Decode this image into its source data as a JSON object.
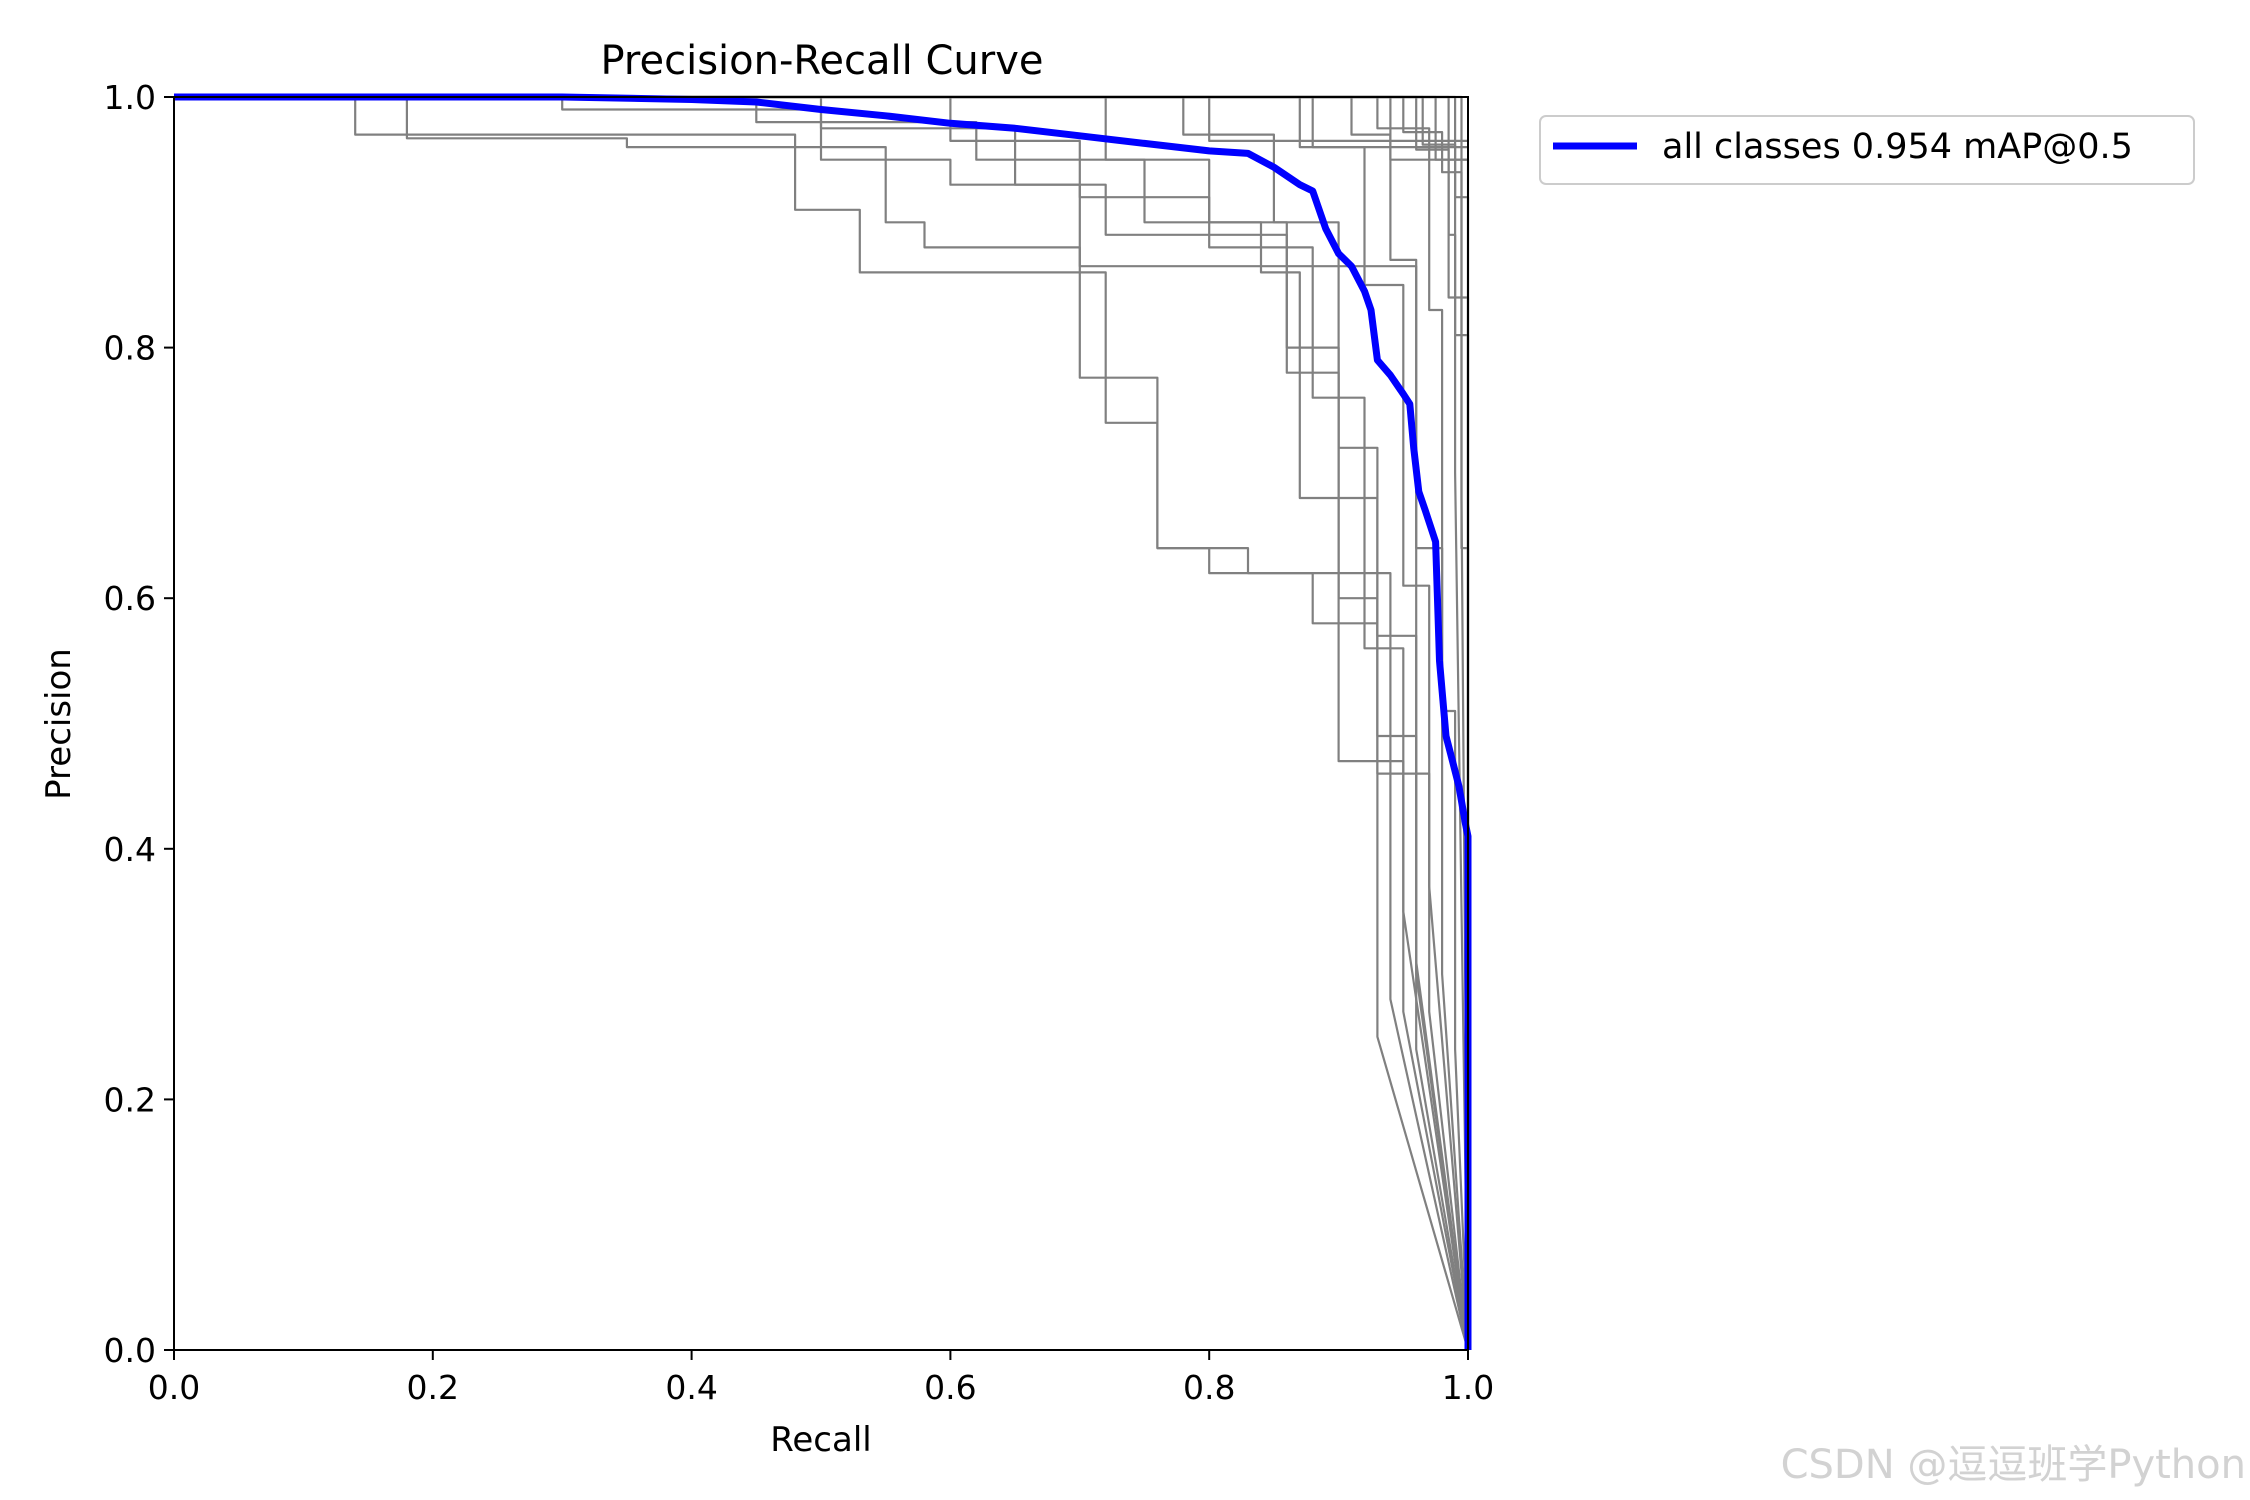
{
  "chart_data": {
    "type": "line",
    "title": "Precision-Recall Curve",
    "xlabel": "Recall",
    "ylabel": "Precision",
    "xlim": [
      0,
      1
    ],
    "ylim": [
      0,
      1
    ],
    "xticks": [
      "0.0",
      "0.2",
      "0.4",
      "0.6",
      "0.8",
      "1.0"
    ],
    "yticks": [
      "0.0",
      "0.2",
      "0.4",
      "0.6",
      "0.8",
      "1.0"
    ],
    "grid": false,
    "legend_position": "outside-top-right",
    "colors": {
      "summary": "#0000ff",
      "per_class": "#808080"
    },
    "legend": [
      "all classes 0.954 mAP@0.5"
    ],
    "series": [
      {
        "name": "all classes 0.954 mAP@0.5",
        "color": "#0000ff",
        "points": [
          [
            0,
            1.0
          ],
          [
            0.3,
            1.0
          ],
          [
            0.4,
            0.998
          ],
          [
            0.45,
            0.996
          ],
          [
            0.5,
            0.99
          ],
          [
            0.55,
            0.985
          ],
          [
            0.6,
            0.979
          ],
          [
            0.65,
            0.975
          ],
          [
            0.7,
            0.969
          ],
          [
            0.75,
            0.963
          ],
          [
            0.8,
            0.957
          ],
          [
            0.83,
            0.955
          ],
          [
            0.85,
            0.944
          ],
          [
            0.87,
            0.93
          ],
          [
            0.88,
            0.925
          ],
          [
            0.89,
            0.895
          ],
          [
            0.9,
            0.875
          ],
          [
            0.91,
            0.865
          ],
          [
            0.92,
            0.845
          ],
          [
            0.925,
            0.83
          ],
          [
            0.93,
            0.79
          ],
          [
            0.94,
            0.778
          ],
          [
            0.95,
            0.763
          ],
          [
            0.955,
            0.755
          ],
          [
            0.958,
            0.72
          ],
          [
            0.962,
            0.685
          ],
          [
            0.967,
            0.67
          ],
          [
            0.975,
            0.645
          ],
          [
            0.978,
            0.55
          ],
          [
            0.983,
            0.49
          ],
          [
            0.988,
            0.47
          ],
          [
            0.993,
            0.45
          ],
          [
            0.998,
            0.42
          ],
          [
            1.0,
            0.41
          ],
          [
            1.0,
            0.0
          ]
        ]
      },
      {
        "color": "#808080",
        "points": [
          [
            0,
            1.0
          ],
          [
            0.18,
            1.0
          ],
          [
            0.18,
            0.967
          ],
          [
            0.35,
            0.967
          ],
          [
            0.35,
            0.96
          ],
          [
            0.55,
            0.96
          ],
          [
            0.55,
            0.9
          ],
          [
            0.58,
            0.9
          ],
          [
            0.58,
            0.88
          ],
          [
            0.7,
            0.88
          ],
          [
            0.7,
            0.865
          ],
          [
            0.96,
            0.865
          ],
          [
            0.96,
            0.3
          ],
          [
            1.0,
            0.0
          ]
        ]
      },
      {
        "color": "#808080",
        "points": [
          [
            0,
            1.0
          ],
          [
            0.14,
            1.0
          ],
          [
            0.14,
            0.97
          ],
          [
            0.48,
            0.97
          ],
          [
            0.48,
            0.91
          ],
          [
            0.53,
            0.91
          ],
          [
            0.53,
            0.86
          ],
          [
            0.72,
            0.86
          ],
          [
            0.72,
            0.74
          ],
          [
            0.76,
            0.74
          ],
          [
            0.76,
            0.64
          ],
          [
            0.8,
            0.64
          ],
          [
            0.8,
            0.62
          ],
          [
            0.94,
            0.62
          ],
          [
            0.94,
            0.28
          ],
          [
            1.0,
            0.0
          ]
        ]
      },
      {
        "color": "#808080",
        "points": [
          [
            0,
            1.0
          ],
          [
            0.3,
            1.0
          ],
          [
            0.3,
            0.99
          ],
          [
            0.5,
            0.99
          ],
          [
            0.5,
            0.95
          ],
          [
            0.6,
            0.95
          ],
          [
            0.6,
            0.93
          ],
          [
            0.7,
            0.93
          ],
          [
            0.7,
            0.776
          ],
          [
            0.76,
            0.776
          ],
          [
            0.76,
            0.64
          ],
          [
            0.83,
            0.64
          ],
          [
            0.83,
            0.62
          ],
          [
            0.88,
            0.62
          ],
          [
            0.88,
            0.58
          ],
          [
            0.93,
            0.58
          ],
          [
            0.93,
            0.25
          ],
          [
            1.0,
            0.0
          ]
        ]
      },
      {
        "color": "#808080",
        "points": [
          [
            0,
            1.0
          ],
          [
            0.45,
            1.0
          ],
          [
            0.45,
            0.98
          ],
          [
            0.62,
            0.98
          ],
          [
            0.62,
            0.95
          ],
          [
            0.75,
            0.95
          ],
          [
            0.75,
            0.9
          ],
          [
            0.84,
            0.9
          ],
          [
            0.84,
            0.86
          ],
          [
            0.87,
            0.86
          ],
          [
            0.87,
            0.68
          ],
          [
            0.9,
            0.68
          ],
          [
            0.9,
            0.47
          ],
          [
            0.95,
            0.47
          ],
          [
            0.95,
            0.27
          ],
          [
            1.0,
            0.0
          ]
        ]
      },
      {
        "color": "#808080",
        "points": [
          [
            0,
            1.0
          ],
          [
            0.5,
            1.0
          ],
          [
            0.5,
            0.975
          ],
          [
            0.65,
            0.975
          ],
          [
            0.65,
            0.93
          ],
          [
            0.72,
            0.93
          ],
          [
            0.72,
            0.89
          ],
          [
            0.86,
            0.89
          ],
          [
            0.86,
            0.78
          ],
          [
            0.9,
            0.78
          ],
          [
            0.9,
            0.6
          ],
          [
            0.93,
            0.6
          ],
          [
            0.93,
            0.49
          ],
          [
            0.96,
            0.49
          ],
          [
            0.96,
            0.24
          ],
          [
            1.0,
            0.0
          ]
        ]
      },
      {
        "color": "#808080",
        "points": [
          [
            0,
            1.0
          ],
          [
            0.6,
            1.0
          ],
          [
            0.6,
            0.965
          ],
          [
            0.7,
            0.965
          ],
          [
            0.7,
            0.92
          ],
          [
            0.8,
            0.92
          ],
          [
            0.8,
            0.88
          ],
          [
            0.88,
            0.88
          ],
          [
            0.88,
            0.76
          ],
          [
            0.92,
            0.76
          ],
          [
            0.92,
            0.56
          ],
          [
            0.95,
            0.56
          ],
          [
            0.95,
            0.35
          ],
          [
            1.0,
            0.0
          ]
        ]
      },
      {
        "color": "#808080",
        "points": [
          [
            0,
            1.0
          ],
          [
            0.72,
            1.0
          ],
          [
            0.72,
            0.95
          ],
          [
            0.8,
            0.95
          ],
          [
            0.8,
            0.9
          ],
          [
            0.86,
            0.9
          ],
          [
            0.86,
            0.8
          ],
          [
            0.9,
            0.8
          ],
          [
            0.9,
            0.68
          ],
          [
            0.93,
            0.68
          ],
          [
            0.93,
            0.46
          ],
          [
            0.97,
            0.46
          ],
          [
            0.97,
            0.27
          ],
          [
            1.0,
            0.0
          ]
        ]
      },
      {
        "color": "#808080",
        "points": [
          [
            0,
            1.0
          ],
          [
            0.78,
            1.0
          ],
          [
            0.78,
            0.97
          ],
          [
            0.85,
            0.97
          ],
          [
            0.85,
            0.9
          ],
          [
            0.9,
            0.9
          ],
          [
            0.9,
            0.72
          ],
          [
            0.93,
            0.72
          ],
          [
            0.93,
            0.57
          ],
          [
            0.96,
            0.57
          ],
          [
            0.96,
            0.31
          ],
          [
            1.0,
            0.0
          ]
        ]
      },
      {
        "color": "#808080",
        "points": [
          [
            0,
            1.0
          ],
          [
            0.88,
            1.0
          ],
          [
            0.88,
            0.96
          ],
          [
            0.92,
            0.96
          ],
          [
            0.92,
            0.85
          ],
          [
            0.95,
            0.85
          ],
          [
            0.95,
            0.61
          ],
          [
            0.97,
            0.61
          ],
          [
            0.97,
            0.37
          ],
          [
            1.0,
            0.0
          ]
        ]
      },
      {
        "color": "#808080",
        "points": [
          [
            0,
            1.0
          ],
          [
            0.91,
            1.0
          ],
          [
            0.91,
            0.97
          ],
          [
            0.94,
            0.97
          ],
          [
            0.94,
            0.87
          ],
          [
            0.96,
            0.87
          ],
          [
            0.96,
            0.64
          ],
          [
            0.98,
            0.64
          ],
          [
            0.98,
            0.3
          ],
          [
            1.0,
            0.0
          ]
        ]
      },
      {
        "color": "#808080",
        "points": [
          [
            0,
            1.0
          ],
          [
            0.93,
            1.0
          ],
          [
            0.93,
            0.975
          ],
          [
            0.97,
            0.975
          ],
          [
            0.97,
            0.83
          ],
          [
            0.98,
            0.83
          ],
          [
            0.98,
            0.51
          ],
          [
            0.99,
            0.51
          ],
          [
            0.99,
            0.24
          ],
          [
            1.0,
            0.0
          ]
        ]
      },
      {
        "color": "#808080",
        "points": [
          [
            0,
            1.0
          ],
          [
            0.96,
            1.0
          ],
          [
            0.96,
            0.958
          ],
          [
            0.985,
            0.958
          ],
          [
            0.985,
            0.89
          ],
          [
            0.99,
            0.89
          ],
          [
            0.99,
            0.7
          ],
          [
            1.0,
            0.0
          ]
        ]
      },
      {
        "color": "#808080",
        "points": [
          [
            0,
            1.0
          ],
          [
            0.95,
            1.0
          ],
          [
            0.95,
            0.972
          ],
          [
            0.98,
            0.972
          ],
          [
            0.98,
            0.94
          ],
          [
            0.995,
            0.94
          ],
          [
            0.995,
            0.68
          ],
          [
            1.0,
            0.0
          ]
        ]
      },
      {
        "color": "#808080",
        "points": [
          [
            0,
            1.0
          ],
          [
            0.965,
            1.0
          ],
          [
            0.965,
            0.962
          ],
          [
            0.99,
            0.962
          ],
          [
            0.99,
            0.92
          ],
          [
            1.0,
            0.92
          ],
          [
            1.0,
            0.0
          ]
        ]
      },
      {
        "color": "#808080",
        "points": [
          [
            0,
            1.0
          ],
          [
            0.975,
            1.0
          ],
          [
            0.975,
            0.95
          ],
          [
            1.0,
            0.95
          ],
          [
            1.0,
            0.0
          ]
        ]
      },
      {
        "color": "#808080",
        "points": [
          [
            0,
            1.0
          ],
          [
            0.985,
            1.0
          ],
          [
            0.985,
            0.84
          ],
          [
            1.0,
            0.84
          ],
          [
            1.0,
            0.0
          ]
        ]
      },
      {
        "color": "#808080",
        "points": [
          [
            0,
            1.0
          ],
          [
            0.99,
            1.0
          ],
          [
            0.99,
            0.81
          ],
          [
            1.0,
            0.81
          ],
          [
            1.0,
            0.0
          ]
        ]
      },
      {
        "color": "#808080",
        "points": [
          [
            0,
            1.0
          ],
          [
            0.995,
            1.0
          ],
          [
            0.995,
            0.64
          ],
          [
            1.0,
            0.64
          ],
          [
            1.0,
            0.0
          ]
        ]
      },
      {
        "color": "#808080",
        "points": [
          [
            0,
            1.0
          ],
          [
            0.8,
            1.0
          ],
          [
            0.8,
            0.965
          ],
          [
            1.0,
            0.965
          ]
        ]
      },
      {
        "color": "#808080",
        "points": [
          [
            0,
            1.0
          ],
          [
            0.87,
            1.0
          ],
          [
            0.87,
            0.96
          ],
          [
            1.0,
            0.96
          ]
        ]
      },
      {
        "color": "#808080",
        "points": [
          [
            0,
            1.0
          ],
          [
            0.94,
            1.0
          ],
          [
            0.94,
            0.95
          ],
          [
            1.0,
            0.95
          ]
        ]
      }
    ]
  },
  "watermark": "CSDN @逗逗班学Python"
}
